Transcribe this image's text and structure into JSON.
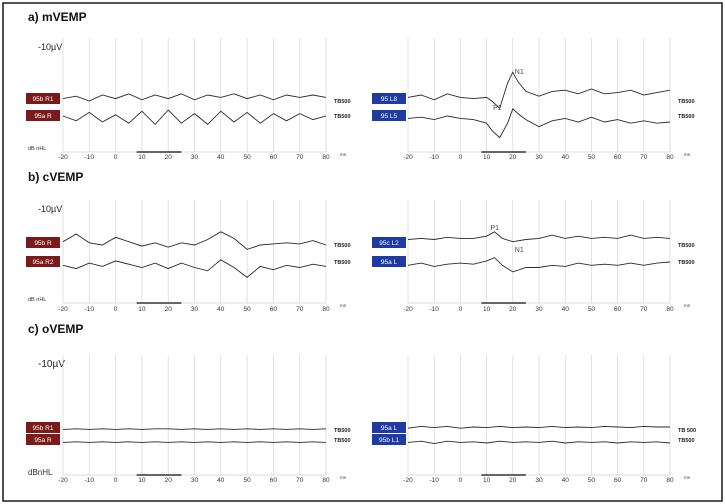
{
  "figure": {
    "border_color": "#1a1a1a",
    "grid_color": "#d6d6d6",
    "trace_color": "#2a2a2a",
    "right_label_color": "#1f3aa0",
    "left_label_color": "#7b1a1a",
    "amplitude_label": "-10µV",
    "ms_label": "ms",
    "ticks": [
      "-20",
      "-10",
      "0",
      "10",
      "20",
      "30",
      "40",
      "50",
      "60",
      "70",
      "80"
    ]
  },
  "chart_data": [
    {
      "type": "line",
      "panel": "a",
      "title": "a) mVEMP",
      "side": "left",
      "unit_label": "dB nHL",
      "xlim": [
        -20,
        80
      ],
      "series": [
        {
          "name": "95b R1",
          "stimulus": "TB500",
          "x": [
            -20,
            -15,
            -10,
            -5,
            0,
            5,
            10,
            15,
            20,
            25,
            30,
            35,
            40,
            45,
            50,
            55,
            60,
            65,
            70,
            75,
            80
          ],
          "y": [
            0.2,
            0.4,
            0.0,
            0.5,
            0.2,
            0.6,
            0.1,
            0.5,
            0.2,
            0.6,
            0.1,
            0.5,
            0.3,
            0.6,
            0.2,
            0.5,
            0.1,
            0.5,
            0.3,
            0.5,
            0.3
          ]
        },
        {
          "name": "95a R",
          "stimulus": "TB500",
          "x": [
            -20,
            -15,
            -10,
            -5,
            0,
            5,
            10,
            15,
            20,
            25,
            30,
            35,
            40,
            45,
            50,
            55,
            60,
            65,
            70,
            75,
            80
          ],
          "y": [
            0.0,
            -0.4,
            0.3,
            -0.5,
            0.1,
            -0.6,
            0.4,
            -0.7,
            0.5,
            -0.6,
            0.2,
            -0.7,
            0.4,
            -0.5,
            0.3,
            -0.6,
            0.2,
            -0.4,
            0.2,
            -0.3,
            0.0
          ]
        }
      ]
    },
    {
      "type": "line",
      "panel": "a",
      "title": "",
      "side": "right",
      "unit_label": "",
      "xlim": [
        -20,
        80
      ],
      "series": [
        {
          "name": "95 L8",
          "stimulus": "TB500",
          "x": [
            -20,
            -15,
            -10,
            -5,
            0,
            5,
            10,
            12,
            15,
            18,
            20,
            22,
            25,
            30,
            35,
            40,
            45,
            50,
            55,
            60,
            65,
            70,
            75,
            80
          ],
          "y": [
            0.3,
            0.5,
            0.1,
            0.6,
            0.3,
            0.2,
            0.3,
            0.0,
            -0.6,
            1.5,
            2.4,
            1.6,
            0.8,
            0.4,
            0.8,
            0.9,
            0.6,
            1.0,
            0.6,
            0.7,
            0.9,
            0.5,
            0.7,
            0.9
          ]
        },
        {
          "name": "95 L5",
          "stimulus": "TB500",
          "x": [
            -20,
            -15,
            -10,
            -5,
            0,
            5,
            10,
            12,
            15,
            18,
            20,
            22,
            25,
            30,
            35,
            40,
            45,
            50,
            55,
            60,
            65,
            70,
            75,
            80
          ],
          "y": [
            -0.2,
            -0.1,
            -0.3,
            0.0,
            -0.2,
            -0.3,
            -0.6,
            -1.2,
            -1.8,
            -0.6,
            0.6,
            0.2,
            -0.3,
            -0.9,
            -0.4,
            -0.2,
            -0.5,
            -0.1,
            -0.5,
            -0.3,
            -0.6,
            -0.4,
            -0.6,
            -0.5
          ]
        }
      ],
      "annotations": [
        {
          "label": "N1",
          "x": 20
        },
        {
          "label": "P1",
          "x": 14
        }
      ]
    },
    {
      "type": "line",
      "panel": "b",
      "title": "b) cVEMP",
      "side": "left",
      "unit_label": "dB nHL",
      "xlim": [
        -20,
        80
      ],
      "series": [
        {
          "name": "95b R",
          "stimulus": "TB500",
          "x": [
            -20,
            -15,
            -10,
            -5,
            0,
            5,
            10,
            15,
            20,
            25,
            30,
            35,
            40,
            45,
            50,
            55,
            60,
            65,
            70,
            75,
            80
          ],
          "y": [
            0.3,
            1.0,
            0.2,
            0.0,
            0.7,
            0.3,
            -0.1,
            0.2,
            -0.2,
            0.2,
            0.0,
            0.5,
            1.2,
            0.6,
            -0.4,
            0.0,
            0.1,
            0.2,
            0.1,
            0.4,
            0.0
          ]
        },
        {
          "name": "95a R2",
          "stimulus": "TB500",
          "x": [
            -20,
            -15,
            -10,
            -5,
            0,
            5,
            10,
            15,
            20,
            25,
            30,
            35,
            40,
            45,
            50,
            55,
            60,
            65,
            70,
            75,
            80
          ],
          "y": [
            -0.3,
            -0.6,
            -0.1,
            -0.4,
            0.1,
            -0.2,
            -0.5,
            -0.1,
            -0.6,
            -0.1,
            -0.5,
            -0.8,
            0.2,
            -0.5,
            -1.4,
            -0.4,
            -0.7,
            -0.3,
            -0.5,
            -0.2,
            -0.4
          ]
        }
      ]
    },
    {
      "type": "line",
      "panel": "b",
      "title": "",
      "side": "right",
      "unit_label": "",
      "xlim": [
        -20,
        80
      ],
      "series": [
        {
          "name": "95c L2",
          "stimulus": "TB500",
          "x": [
            -20,
            -15,
            -10,
            -5,
            0,
            5,
            10,
            13,
            16,
            20,
            25,
            30,
            35,
            40,
            45,
            50,
            55,
            60,
            65,
            70,
            75,
            80
          ],
          "y": [
            0.5,
            0.6,
            0.5,
            0.7,
            0.6,
            0.6,
            0.8,
            1.2,
            0.6,
            0.3,
            0.5,
            0.6,
            0.9,
            0.6,
            0.8,
            0.6,
            0.7,
            0.6,
            0.9,
            0.6,
            0.7,
            0.6
          ]
        },
        {
          "name": "95a L",
          "stimulus": "TB500",
          "x": [
            -20,
            -15,
            -10,
            -5,
            0,
            5,
            10,
            13,
            16,
            20,
            25,
            30,
            35,
            40,
            45,
            50,
            55,
            60,
            65,
            70,
            75,
            80
          ],
          "y": [
            -0.3,
            -0.1,
            -0.4,
            -0.2,
            -0.1,
            -0.2,
            0.1,
            0.4,
            -0.3,
            -0.9,
            -0.5,
            -0.5,
            -0.3,
            -0.4,
            -0.1,
            -0.3,
            -0.2,
            -0.3,
            -0.1,
            -0.3,
            -0.1,
            0.0
          ]
        }
      ],
      "annotations": [
        {
          "label": "P1",
          "x": 13
        },
        {
          "label": "N1",
          "x": 20
        }
      ]
    },
    {
      "type": "line",
      "panel": "c",
      "title": "c) oVEMP",
      "side": "left",
      "unit_label": "dBnHL",
      "xlim": [
        -20,
        80
      ],
      "series": [
        {
          "name": "95b R1",
          "stimulus": "TB500",
          "x": [
            -20,
            -15,
            -10,
            -5,
            0,
            5,
            10,
            15,
            20,
            25,
            30,
            35,
            40,
            45,
            50,
            55,
            60,
            65,
            70,
            75,
            80
          ],
          "y": [
            0.1,
            0.2,
            0.1,
            0.2,
            0.1,
            0.2,
            0.1,
            0.2,
            0.2,
            0.1,
            0.2,
            0.1,
            0.2,
            0.1,
            0.2,
            0.1,
            0.2,
            0.1,
            0.2,
            0.1,
            0.2
          ]
        },
        {
          "name": "95a R",
          "stimulus": "TB500",
          "x": [
            -20,
            -15,
            -10,
            -5,
            0,
            5,
            10,
            15,
            20,
            25,
            30,
            35,
            40,
            45,
            50,
            55,
            60,
            65,
            70,
            75,
            80
          ],
          "y": [
            -0.4,
            -0.3,
            -0.4,
            -0.3,
            -0.4,
            -0.3,
            -0.4,
            -0.3,
            -0.4,
            -0.3,
            -0.4,
            -0.3,
            -0.4,
            -0.3,
            -0.4,
            -0.3,
            -0.4,
            -0.3,
            -0.4,
            -0.3,
            -0.4
          ]
        }
      ]
    },
    {
      "type": "line",
      "panel": "c",
      "title": "",
      "side": "right",
      "unit_label": "",
      "xlim": [
        -20,
        80
      ],
      "series": [
        {
          "name": "95a L",
          "stimulus": "TB 500",
          "x": [
            -20,
            -15,
            -10,
            -5,
            0,
            5,
            10,
            15,
            20,
            25,
            30,
            35,
            40,
            45,
            50,
            55,
            60,
            65,
            70,
            75,
            80
          ],
          "y": [
            0.3,
            0.6,
            0.4,
            0.6,
            0.3,
            0.5,
            0.4,
            0.6,
            0.4,
            0.5,
            0.4,
            0.6,
            0.4,
            0.5,
            0.4,
            0.6,
            0.5,
            0.4,
            0.6,
            0.5,
            0.5
          ]
        },
        {
          "name": "95b L1",
          "stimulus": "TB500",
          "x": [
            -20,
            -15,
            -10,
            -5,
            0,
            5,
            10,
            15,
            20,
            25,
            30,
            35,
            40,
            45,
            50,
            55,
            60,
            65,
            70,
            75,
            80
          ],
          "y": [
            -0.4,
            -0.2,
            -0.6,
            -0.2,
            -0.4,
            -0.3,
            -0.5,
            -0.2,
            -0.4,
            -0.3,
            -0.4,
            -0.2,
            -0.5,
            -0.3,
            -0.4,
            -0.3,
            -0.5,
            -0.3,
            -0.4,
            -0.3,
            -0.5
          ]
        }
      ]
    }
  ]
}
